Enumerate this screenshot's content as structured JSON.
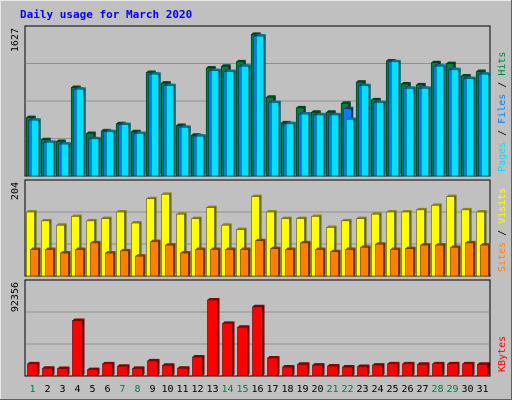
{
  "chart_data": {
    "type": "bar",
    "title": "Daily usage for March 2020",
    "days": [
      "1",
      "2",
      "3",
      "4",
      "5",
      "6",
      "7",
      "8",
      "9",
      "10",
      "11",
      "12",
      "13",
      "14",
      "15",
      "16",
      "17",
      "18",
      "19",
      "20",
      "21",
      "22",
      "23",
      "24",
      "25",
      "26",
      "27",
      "28",
      "29",
      "30",
      "31"
    ],
    "weekend_days": [
      "1",
      "7",
      "8",
      "14",
      "15",
      "21",
      "22",
      "28",
      "29"
    ],
    "panels": [
      {
        "id": "hits-files-pages",
        "max_label": "1627",
        "ymax": 1627,
        "legend": [
          {
            "text": "Pages",
            "color": "#00e0ff"
          },
          {
            "text": " / ",
            "color": "#000000"
          },
          {
            "text": "Files",
            "color": "#0080ff"
          },
          {
            "text": " / ",
            "color": "#000000"
          },
          {
            "text": "Hits",
            "color": "#008040"
          }
        ],
        "series": [
          {
            "name": "Hits",
            "color": "#008040",
            "values": [
              660,
              410,
              390,
              1000,
              480,
              510,
              590,
              500,
              1170,
              1050,
              570,
              460,
              1220,
              1240,
              1290,
              1600,
              890,
              600,
              770,
              720,
              720,
              820,
              1060,
              860,
              1300,
              1040,
              1030,
              1280,
              1270,
              1130,
              1180
            ]
          },
          {
            "name": "Files",
            "color": "#0080ff",
            "values": [
              630,
              380,
              360,
              980,
              420,
              500,
              580,
              480,
              1150,
              1020,
              550,
              450,
              1190,
              1180,
              1240,
              1580,
              830,
              590,
              700,
              690,
              690,
              760,
              1020,
              830,
              1290,
              990,
              990,
              1240,
              1200,
              1100,
              1150
            ]
          },
          {
            "name": "Pages",
            "color": "#00e0ff",
            "values": [
              630,
              380,
              360,
              980,
              420,
              500,
              580,
              480,
              1150,
              1020,
              550,
              450,
              1190,
              1180,
              1240,
              1580,
              830,
              590,
              700,
              690,
              690,
              640,
              1020,
              830,
              1290,
              990,
              990,
              1240,
              1200,
              1100,
              1150
            ]
          }
        ]
      },
      {
        "id": "visits-sites",
        "max_label": "204",
        "ymax": 204,
        "legend": [
          {
            "text": "Sites",
            "color": "#ff8000"
          },
          {
            "text": " / ",
            "color": "#000000"
          },
          {
            "text": "Visits",
            "color": "#ffff00"
          }
        ],
        "series": [
          {
            "name": "Visits",
            "color": "#ffff00",
            "values": [
              145,
              125,
              115,
              135,
              125,
              130,
              145,
              120,
              175,
              185,
              140,
              130,
              155,
              115,
              105,
              180,
              145,
              130,
              130,
              135,
              110,
              125,
              130,
              140,
              145,
              145,
              150,
              160,
              180,
              150,
              145
            ]
          },
          {
            "name": "Sites",
            "color": "#ff8000",
            "values": [
              60,
              60,
              52,
              60,
              75,
              52,
              57,
              45,
              78,
              70,
              52,
              60,
              60,
              60,
              60,
              80,
              62,
              60,
              75,
              60,
              55,
              60,
              65,
              72,
              60,
              62,
              70,
              70,
              65,
              75,
              70
            ]
          }
        ]
      },
      {
        "id": "kbytes",
        "max_label": "92356",
        "ymax": 92356,
        "legend": [
          {
            "text": "KBytes",
            "color": "#ff0000"
          }
        ],
        "series": [
          {
            "name": "KBytes",
            "color": "#ff0000",
            "values": [
              12500,
              8000,
              7700,
              57000,
              6500,
              12500,
              10000,
              7800,
              15500,
              11000,
              8000,
              19500,
              78000,
              54000,
              50000,
              71000,
              18500,
              9200,
              12000,
              11200,
              10200,
              9200,
              9700,
              11200,
              12500,
              12500,
              12000,
              12500,
              12500,
              12500,
              12000
            ]
          }
        ]
      }
    ]
  }
}
